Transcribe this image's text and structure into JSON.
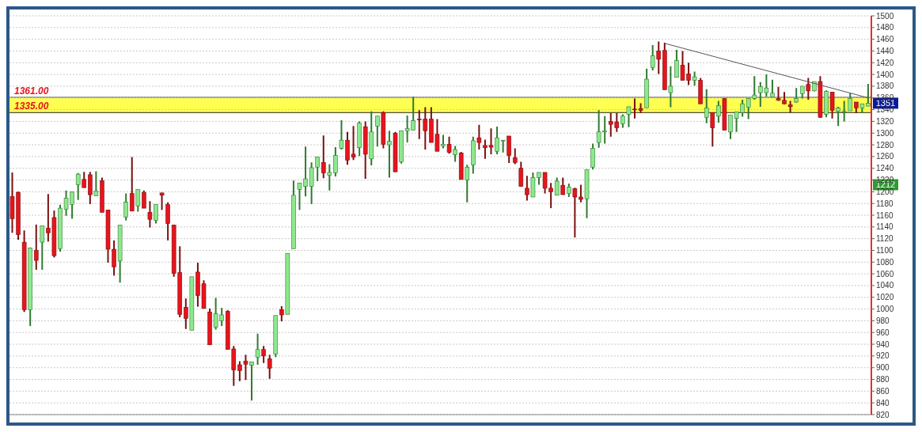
{
  "chart_data": {
    "type": "candlestick",
    "categories": [
      null,
      null,
      null,
      null,
      null,
      null,
      null,
      null,
      null,
      null,
      null,
      null,
      null,
      null,
      null,
      null,
      null,
      null,
      null,
      null,
      null,
      null,
      null,
      null,
      null,
      null,
      null,
      null,
      null,
      null,
      null,
      null,
      null,
      null,
      null,
      null,
      null,
      null,
      null,
      null,
      null,
      null,
      null,
      null,
      null,
      null,
      null,
      null,
      null,
      null,
      null,
      null,
      null,
      null,
      null,
      null,
      null,
      null,
      null,
      null,
      null,
      null,
      null,
      null,
      null,
      null,
      null,
      null,
      null,
      null,
      null,
      null,
      null,
      null,
      null,
      null,
      null,
      null,
      null,
      null,
      null,
      null,
      null,
      null,
      null,
      null,
      null,
      null,
      null,
      null,
      null,
      null,
      null,
      null,
      null,
      null,
      null,
      null,
      null,
      null,
      null,
      null,
      null,
      null,
      null,
      null,
      null,
      null,
      null,
      null,
      null,
      null,
      null,
      null,
      null,
      null,
      null,
      null,
      null,
      null,
      null,
      null,
      null,
      null,
      null,
      null,
      null,
      null,
      null,
      null,
      null,
      null,
      null,
      null,
      null,
      null,
      null,
      null,
      null,
      null,
      null,
      null,
      null,
      null
    ],
    "ohlc": [
      [
        1192,
        1233,
        1130,
        1154
      ],
      [
        1199,
        1200,
        1118,
        1127
      ],
      [
        1114,
        1134,
        995,
        999
      ],
      [
        999,
        1105,
        971,
        1104
      ],
      [
        1100,
        1144,
        1067,
        1083
      ],
      [
        1114,
        1142,
        1067,
        1142
      ],
      [
        1138,
        1196,
        1115,
        1130
      ],
      [
        1156,
        1168,
        1088,
        1091
      ],
      [
        1103,
        1178,
        1098,
        1172
      ],
      [
        1170,
        1202,
        1159,
        1189
      ],
      [
        1178,
        1200,
        1154,
        1200
      ],
      [
        1212,
        1232,
        1186,
        1230
      ],
      [
        1221,
        1234,
        1207,
        1207
      ],
      [
        1229,
        1234,
        1179,
        1195
      ],
      [
        1193,
        1235,
        1193,
        1201
      ],
      [
        1219,
        1224,
        1165,
        1165
      ],
      [
        1169,
        1169,
        1079,
        1102
      ],
      [
        1102,
        1117,
        1057,
        1072
      ],
      [
        1082,
        1143,
        1045,
        1143
      ],
      [
        1157,
        1197,
        1151,
        1182
      ],
      [
        1197,
        1259,
        1167,
        1167
      ],
      [
        1176,
        1204,
        1166,
        1204
      ],
      [
        1199,
        1202,
        1172,
        1172
      ],
      [
        1165,
        1184,
        1139,
        1153
      ],
      [
        1151,
        1178,
        1146,
        1178
      ],
      [
        1198,
        1198,
        1169,
        1194
      ],
      [
        1178,
        1182,
        1117,
        1146
      ],
      [
        1143,
        1144,
        1055,
        1061
      ],
      [
        1062,
        1107,
        986,
        991
      ],
      [
        1003,
        1018,
        966,
        984
      ],
      [
        964,
        1055,
        964,
        1055
      ],
      [
        1063,
        1079,
        1004,
        1023
      ],
      [
        1043,
        1049,
        1001,
        1001
      ],
      [
        995,
        1001,
        939,
        939
      ],
      [
        969,
        1019,
        965,
        992
      ],
      [
        980,
        1002,
        971,
        990
      ],
      [
        996,
        998,
        931,
        931
      ],
      [
        932,
        937,
        869,
        896
      ],
      [
        905,
        911,
        877,
        895
      ],
      [
        911,
        922,
        879,
        906
      ],
      [
        904,
        910,
        844,
        910
      ],
      [
        918,
        958,
        905,
        931
      ],
      [
        931,
        937,
        908,
        920
      ],
      [
        915,
        922,
        881,
        899
      ],
      [
        923,
        989,
        918,
        989
      ],
      [
        999,
        1005,
        979,
        990
      ],
      [
        991,
        1095,
        991,
        1095
      ],
      [
        1103,
        1219,
        1103,
        1194
      ],
      [
        1204,
        1215,
        1169,
        1215
      ],
      [
        1209,
        1277,
        1192,
        1222
      ],
      [
        1209,
        1250,
        1179,
        1241
      ],
      [
        1242,
        1259,
        1218,
        1259
      ],
      [
        1250,
        1296,
        1223,
        1232
      ],
      [
        1228,
        1247,
        1202,
        1233
      ],
      [
        1232,
        1276,
        1226,
        1262
      ],
      [
        1274,
        1322,
        1272,
        1288
      ],
      [
        1288,
        1302,
        1246,
        1254
      ],
      [
        1264,
        1312,
        1254,
        1259
      ],
      [
        1275,
        1320,
        1261,
        1317
      ],
      [
        1311,
        1320,
        1222,
        1264
      ],
      [
        1256,
        1337,
        1245,
        1302
      ],
      [
        1312,
        1329,
        1277,
        1329
      ],
      [
        1335,
        1337,
        1274,
        1281
      ],
      [
        1280,
        1304,
        1224,
        1286
      ],
      [
        1300,
        1302,
        1234,
        1234
      ],
      [
        1251,
        1304,
        1248,
        1304
      ],
      [
        1304,
        1330,
        1284,
        1308
      ],
      [
        1305,
        1362,
        1305,
        1321
      ],
      [
        1324,
        1339,
        1290,
        1323
      ],
      [
        1324,
        1344,
        1272,
        1304
      ],
      [
        1324,
        1344,
        1284,
        1284
      ],
      [
        1298,
        1324,
        1269,
        1269
      ],
      [
        1278,
        1297,
        1274,
        1281
      ],
      [
        1281,
        1294,
        1265,
        1267
      ],
      [
        1263,
        1278,
        1251,
        1272
      ],
      [
        1266,
        1268,
        1221,
        1221
      ],
      [
        1220,
        1246,
        1182,
        1242
      ],
      [
        1246,
        1294,
        1231,
        1287
      ],
      [
        1292,
        1314,
        1272,
        1284
      ],
      [
        1279,
        1289,
        1256,
        1275
      ],
      [
        1279,
        1308,
        1264,
        1276
      ],
      [
        1269,
        1311,
        1264,
        1292
      ],
      [
        1287,
        1288,
        1267,
        1288
      ],
      [
        1295,
        1295,
        1249,
        1262
      ],
      [
        1258,
        1274,
        1247,
        1250
      ],
      [
        1240,
        1251,
        1209,
        1209
      ],
      [
        1206,
        1227,
        1185,
        1195
      ],
      [
        1191,
        1233,
        1191,
        1224
      ],
      [
        1224,
        1233,
        1212,
        1233
      ],
      [
        1233,
        1233,
        1197,
        1206
      ],
      [
        1206,
        1215,
        1172,
        1200
      ],
      [
        1194,
        1224,
        1194,
        1218
      ],
      [
        1211,
        1224,
        1195,
        1195
      ],
      [
        1197,
        1214,
        1191,
        1208
      ],
      [
        1205,
        1207,
        1122,
        1191
      ],
      [
        1191,
        1212,
        1182,
        1187
      ],
      [
        1188,
        1238,
        1155,
        1238
      ],
      [
        1242,
        1282,
        1238,
        1274
      ],
      [
        1284,
        1339,
        1275,
        1302
      ],
      [
        1302,
        1329,
        1282,
        1304
      ],
      [
        1320,
        1334,
        1294,
        1315
      ],
      [
        1319,
        1334,
        1302,
        1309
      ],
      [
        1316,
        1332,
        1309,
        1329
      ],
      [
        1332,
        1345,
        1310,
        1345
      ],
      [
        1341,
        1359,
        1325,
        1340
      ],
      [
        1342,
        1351,
        1334,
        1339
      ],
      [
        1343,
        1410,
        1343,
        1392
      ],
      [
        1412,
        1450,
        1407,
        1432
      ],
      [
        1440,
        1456,
        1401,
        1426
      ],
      [
        1441,
        1454,
        1374,
        1374
      ],
      [
        1369,
        1414,
        1344,
        1380
      ],
      [
        1395,
        1442,
        1395,
        1424
      ],
      [
        1416,
        1440,
        1390,
        1390
      ],
      [
        1401,
        1420,
        1382,
        1390
      ],
      [
        1390,
        1405,
        1381,
        1396
      ],
      [
        1390,
        1394,
        1350,
        1350
      ],
      [
        1327,
        1375,
        1317,
        1343
      ],
      [
        1335,
        1335,
        1277,
        1309
      ],
      [
        1329,
        1355,
        1318,
        1347
      ],
      [
        1359,
        1359,
        1305,
        1305
      ],
      [
        1302,
        1331,
        1290,
        1331
      ],
      [
        1325,
        1336,
        1302,
        1336
      ],
      [
        1335,
        1357,
        1328,
        1350
      ],
      [
        1344,
        1359,
        1324,
        1359
      ],
      [
        1359,
        1397,
        1357,
        1365
      ],
      [
        1369,
        1387,
        1345,
        1379
      ],
      [
        1369,
        1400,
        1362,
        1377
      ],
      [
        1362,
        1391,
        1362,
        1368
      ],
      [
        1359,
        1379,
        1355,
        1356
      ],
      [
        1356,
        1370,
        1349,
        1350
      ],
      [
        1348,
        1355,
        1335,
        1345
      ],
      [
        1353,
        1377,
        1352,
        1359
      ],
      [
        1367,
        1380,
        1359,
        1380
      ],
      [
        1383,
        1394,
        1357,
        1372
      ],
      [
        1372,
        1388,
        1371,
        1388
      ],
      [
        1388,
        1397,
        1326,
        1327
      ],
      [
        1332,
        1373,
        1327,
        1371
      ],
      [
        1370,
        1370,
        1325,
        1339
      ],
      [
        1337,
        1345,
        1312,
        1343
      ],
      [
        1337,
        1355,
        1320,
        1337
      ],
      [
        1338,
        1368,
        1338,
        1359
      ],
      [
        1353,
        1353,
        1334,
        1343
      ],
      [
        1343,
        1350,
        1334,
        1350
      ],
      [
        1346,
        1384,
        1346,
        1351
      ]
    ],
    "series": [
      {
        "type": "line",
        "color": "#555555",
        "values": [
          null,
          null,
          null,
          null,
          null,
          null,
          null,
          null,
          null,
          null,
          null,
          null,
          null,
          null,
          null,
          null,
          null,
          null,
          null,
          null,
          null,
          null,
          null,
          null,
          null,
          null,
          null,
          null,
          null,
          null,
          null,
          null,
          null,
          null,
          null,
          null,
          null,
          null,
          null,
          null,
          null,
          null,
          null,
          null,
          null,
          null,
          null,
          null,
          null,
          null,
          null,
          null,
          null,
          null,
          null,
          null,
          null,
          null,
          null,
          null,
          null,
          null,
          null,
          null,
          null,
          null,
          null,
          null,
          null,
          null,
          null,
          null,
          null,
          null,
          null,
          null,
          null,
          null,
          null,
          null,
          null,
          null,
          null,
          null,
          null,
          null,
          null,
          null,
          null,
          null,
          null,
          null,
          null,
          null,
          null,
          null,
          null,
          null,
          null,
          null,
          null,
          null,
          null,
          null,
          null,
          null,
          null,
          null,
          null,
          1453,
          null,
          null,
          null,
          null,
          null,
          null,
          null,
          null,
          null,
          null,
          null,
          null,
          null,
          null,
          null,
          null,
          null,
          null,
          null,
          null,
          null,
          null,
          null,
          null,
          null,
          null,
          null,
          null,
          null,
          null,
          null,
          null,
          null,
          1360
        ]
      }
    ],
    "ylim": [
      820,
      1500
    ],
    "yticks": [
      820,
      840,
      860,
      880,
      900,
      920,
      940,
      960,
      980,
      1000,
      1020,
      1040,
      1060,
      1080,
      1100,
      1120,
      1140,
      1160,
      1180,
      1200,
      1220,
      1240,
      1260,
      1280,
      1300,
      1320,
      1340,
      1360,
      1380,
      1400,
      1420,
      1440,
      1460,
      1480,
      1500
    ],
    "ref_lines": [
      {
        "axis": "y",
        "value": 1361,
        "label": "1361.00",
        "color": "#444444"
      },
      {
        "axis": "y",
        "value": 1335,
        "label": "1335.00",
        "color": "#222222"
      }
    ],
    "bands": [
      {
        "axis": "y",
        "from": 1335,
        "to": 1361,
        "color": "#ffff33"
      }
    ],
    "annotations": [
      {
        "text": "1351",
        "y": 1351
      },
      {
        "text": "1212",
        "y": 1212
      }
    ],
    "grid": "y",
    "tick_labels": "y"
  }
}
